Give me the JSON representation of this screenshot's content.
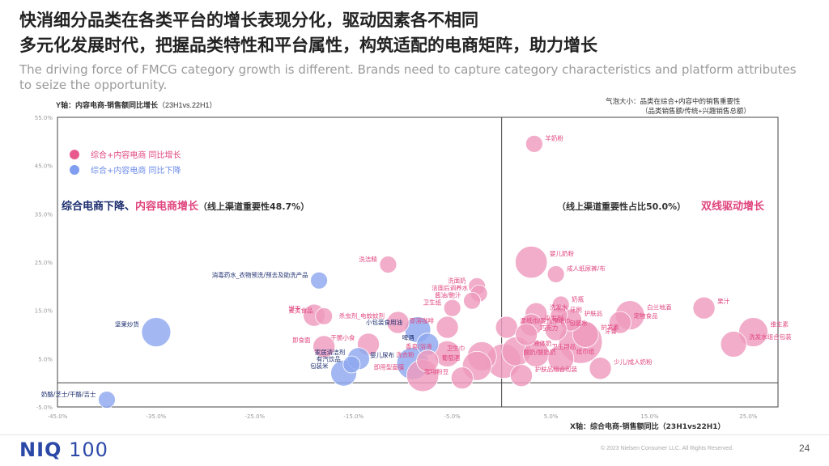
{
  "header": {
    "title_line1": "快消细分品类在各类平台的增长表现分化，驱动因素各不相同",
    "title_line2": "多元化发展时代，把握品类特性和平台属性，构筑适配的电商矩阵，助力增长",
    "subtitle": "The driving force of FMCG category growth is different. Brands need to capture category characteristics and platform attributes to seize the opportunity."
  },
  "axis_notes": {
    "y_label_bold": "Y轴：内容电商-销售额同比增长",
    "y_label_period": "（23H1vs.22H1）",
    "bubble_size_line1": "气泡大小：品类在综合+内容中的销售重要性",
    "bubble_size_line2": "（品类销售额/传统+兴趣销售总额）"
  },
  "legend": {
    "pink": "综合+内容电商 同比增长",
    "blue": "综合+内容电商 同比下降"
  },
  "quadrants": {
    "left_blue": "综合电商下降、",
    "left_pink": "内容电商增长",
    "left_note": "（线上渠道重要性48.7%）",
    "right_note": "（线上渠道重要性占比50.0%）",
    "right_pink": "双线驱动增长"
  },
  "footer": {
    "logo_bold": "NIQ",
    "logo_num": "100",
    "copyright": "© 2023 Nielsen Consumer LLC. All Rights Reserved.",
    "page": "24"
  },
  "colors": {
    "pink": "#ee9bbd",
    "blue": "#8fa8ef",
    "darkblue": "#1b2c6e",
    "pinktext": "#e0457e"
  },
  "chart_data": {
    "type": "scatter",
    "xlabel": "X轴：综合电商-销售额同比（23H1vs22H1）",
    "ylabel": "Y轴：内容电商-销售额同比增长（23H1vs.22H1）",
    "xlim": [
      -45,
      28
    ],
    "ylim": [
      -5,
      55
    ],
    "x_ticks": [
      "-45.0%",
      "-35.0%",
      "-25.0%",
      "-15.0%",
      "-5.0%",
      "5.0%",
      "15.0%",
      "25.0%"
    ],
    "x_tick_values": [
      -45,
      -35,
      -25,
      -15,
      -5,
      5,
      15,
      25
    ],
    "y_ticks": [
      "-5.0%",
      "5.0%",
      "15.0%",
      "25.0%",
      "35.0%",
      "45.0%",
      "55.0%"
    ],
    "y_tick_values": [
      -5,
      5,
      15,
      25,
      35,
      45,
      55
    ],
    "points": [
      {
        "label": "羊奶粉",
        "x": 3.3,
        "y": 49.5,
        "s": 1,
        "c": "pink"
      },
      {
        "label": "洗洁精",
        "x": -11.5,
        "y": 24.5,
        "s": 1,
        "c": "pink"
      },
      {
        "label": "消毒药水_衣物预洗/预去及助洗产品",
        "x": -18.5,
        "y": 21.2,
        "s": 1,
        "c": "blue"
      },
      {
        "label": "婴儿奶粉",
        "x": 3.0,
        "y": 25.0,
        "s": 5,
        "c": "pink"
      },
      {
        "label": "成人纸尿裤/布",
        "x": 5.5,
        "y": 22.5,
        "s": 1,
        "c": "pink"
      },
      {
        "label": "洗面奶",
        "x": -2.5,
        "y": 20.0,
        "s": 1,
        "c": "pink"
      },
      {
        "label": "洁面后调养水",
        "x": -2.3,
        "y": 18.5,
        "s": 1,
        "c": "pink"
      },
      {
        "label": "酱油/鲍汁",
        "x": -3.0,
        "y": 17.0,
        "s": 1,
        "c": "pink"
      },
      {
        "label": "卫生纸",
        "x": -5.0,
        "y": 15.5,
        "s": 1,
        "c": "pink"
      },
      {
        "label": "奶瓶",
        "x": 6.0,
        "y": 16.2,
        "s": 1,
        "c": "pink"
      },
      {
        "label": "洗发水",
        "x": 3.5,
        "y": 14.3,
        "s": 2,
        "c": "pink"
      },
      {
        "label": "牙刷",
        "x": 5.8,
        "y": 14.0,
        "s": 1,
        "c": "pink"
      },
      {
        "label": "护肤品",
        "x": 7.0,
        "y": 13.0,
        "s": 2,
        "c": "pink"
      },
      {
        "label": "白兰地酒",
        "x": 13.0,
        "y": 14.0,
        "s": 4,
        "c": "pink"
      },
      {
        "label": "果汁",
        "x": 20.5,
        "y": 15.5,
        "s": 2,
        "c": "pink"
      },
      {
        "label": "宠物食品",
        "x": 12.0,
        "y": 12.5,
        "s": 2,
        "c": "pink"
      },
      {
        "label": "染发剂",
        "x": 3.0,
        "y": 12.0,
        "s": 2,
        "c": "pink"
      },
      {
        "label": "包装水",
        "x": 5.5,
        "y": 11.0,
        "s": 2,
        "c": "pink"
      },
      {
        "label": "湿纸巾/婴儿湿纸巾",
        "x": 0.5,
        "y": 11.5,
        "s": 2,
        "c": "pink"
      },
      {
        "label": "巧克力",
        "x": 2.5,
        "y": 10.0,
        "s": 2,
        "c": "pink"
      },
      {
        "label": "护发素",
        "x": 8.5,
        "y": 10.0,
        "s": 3,
        "c": "pink"
      },
      {
        "label": "牙膏",
        "x": 8.0,
        "y": 8.5,
        "s": 10,
        "c": "pink"
      },
      {
        "label": "饼干",
        "x": -19.0,
        "y": 14.0,
        "s": 2,
        "c": "pink"
      },
      {
        "label": "麦类食品",
        "x": -18.0,
        "y": 13.8,
        "s": 1,
        "c": "pink"
      },
      {
        "label": "杀虫剂_电蚊蚊剂",
        "x": -10.5,
        "y": 12.5,
        "s": 2,
        "c": "pink"
      },
      {
        "label": "小包装食用油",
        "x": -8.5,
        "y": 11.0,
        "s": 3,
        "c": "blue"
      },
      {
        "label": "即溶咖啡",
        "x": -5.5,
        "y": 11.5,
        "s": 2,
        "c": "pink"
      },
      {
        "label": "坚果炒货",
        "x": -35.0,
        "y": 10.5,
        "s": 4,
        "c": "blue"
      },
      {
        "label": "即食面",
        "x": -18.0,
        "y": 7.5,
        "s": 2,
        "c": "pink"
      },
      {
        "label": "干脆小食",
        "x": -13.5,
        "y": 8.0,
        "s": 2,
        "c": "pink"
      },
      {
        "label": "啤酒",
        "x": -7.5,
        "y": 8.0,
        "s": 2,
        "c": "blue"
      },
      {
        "label": "香皂/浴液",
        "x": -5.5,
        "y": 6.0,
        "s": 3,
        "c": "pink"
      },
      {
        "label": "液体奶",
        "x": 1.5,
        "y": 6.5,
        "s": 4,
        "c": "pink"
      },
      {
        "label": "卫生用品",
        "x": 3.5,
        "y": 6.0,
        "s": 3,
        "c": "pink"
      },
      {
        "label": "纸巾纸",
        "x": 6.0,
        "y": 5.0,
        "s": 3,
        "c": "pink"
      },
      {
        "label": "少儿/成人奶粉",
        "x": 10.0,
        "y": 3.0,
        "s": 2,
        "c": "pink"
      },
      {
        "label": "卫生巾",
        "x": -2.0,
        "y": 5.5,
        "s": 4,
        "c": "pink"
      },
      {
        "label": "洗发水组合包装",
        "x": 23.5,
        "y": 8.0,
        "s": 3,
        "c": "pink"
      },
      {
        "label": "维生素",
        "x": 25.5,
        "y": 10.5,
        "s": 4,
        "c": "pink"
      },
      {
        "label": "家居清洁剂",
        "x": -14.5,
        "y": 5.0,
        "s": 2,
        "c": "blue"
      },
      {
        "label": "有汽饮品",
        "x": -15.2,
        "y": 3.8,
        "s": 1,
        "c": "blue"
      },
      {
        "label": "婴儿尿布",
        "x": -9.0,
        "y": 4.0,
        "s": 5,
        "c": "blue"
      },
      {
        "label": "包装米",
        "x": -16.0,
        "y": 2.0,
        "s": 3,
        "c": "blue"
      },
      {
        "label": "洗衣粉",
        "x": -7.5,
        "y": 4.5,
        "s": 2,
        "c": "pink"
      },
      {
        "label": "葡萄酒",
        "x": -2.5,
        "y": 3.5,
        "s": 4,
        "c": "pink"
      },
      {
        "label": "酸奶/酸奶奶",
        "x": 0.2,
        "y": 4.5,
        "s": 6,
        "c": "pink"
      },
      {
        "label": "护肤品组合包装",
        "x": 2.0,
        "y": 1.5,
        "s": 2,
        "c": "pink"
      },
      {
        "label": "咖啡粉豆",
        "x": -4.0,
        "y": 1.0,
        "s": 2,
        "c": "pink"
      },
      {
        "label": "即用型面膜",
        "x": -8.0,
        "y": 1.5,
        "s": 5,
        "c": "pink"
      },
      {
        "label": "奶酪/芝士/干酪/吉士",
        "x": -40.0,
        "y": -3.5,
        "s": 1,
        "c": "blue"
      }
    ]
  }
}
